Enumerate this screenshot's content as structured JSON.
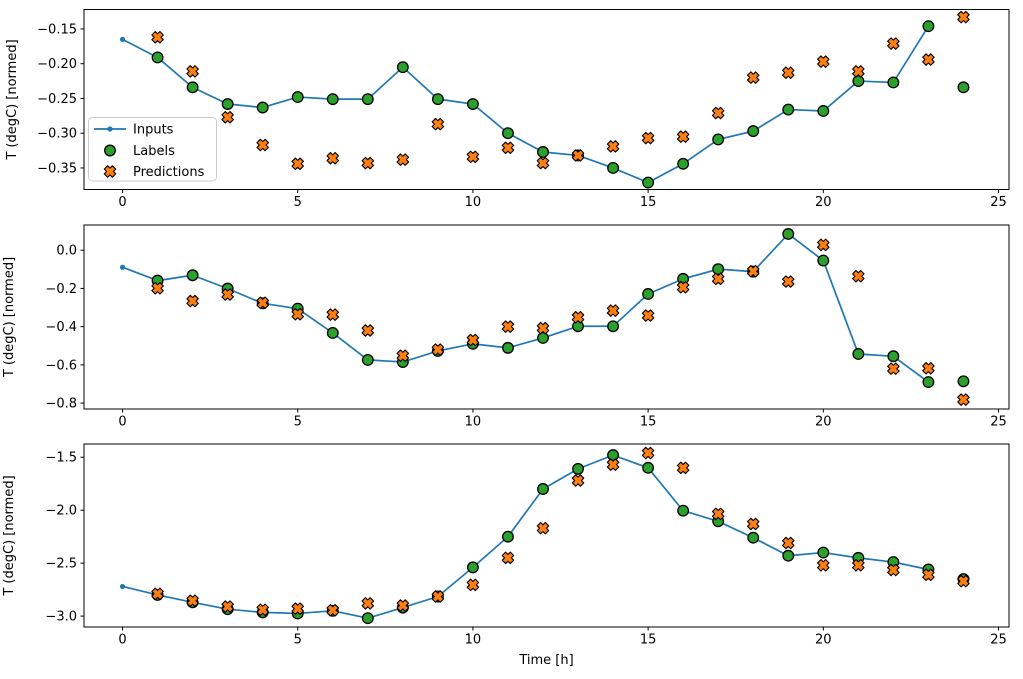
{
  "figure": {
    "background": "#ffffff"
  },
  "colors": {
    "inputs": "#1f77b4",
    "labels": "#2ca02c",
    "predictions": "#ff7f0e",
    "marker_edge": "#000000",
    "axis": "#000000",
    "legend_border": "#cccccc",
    "legend_bg": "#ffffff"
  },
  "legend": {
    "items": [
      {
        "label": "Inputs",
        "marker": "line-dot-icon"
      },
      {
        "label": "Labels",
        "marker": "circle-icon"
      },
      {
        "label": "Predictions",
        "marker": "x-cross-icon"
      }
    ]
  },
  "chart_data": [
    {
      "type": "line",
      "title": "",
      "ylabel": "T (degC) [normed]",
      "xlabel": "",
      "xlim": [
        -1.1,
        25.3
      ],
      "ylim": [
        -0.381,
        -0.122
      ],
      "xticks": [
        0,
        5,
        10,
        15,
        20,
        25
      ],
      "xtick_labels": [
        "0",
        "5",
        "10",
        "15",
        "20",
        "25"
      ],
      "yticks": [
        -0.15,
        -0.2,
        -0.25,
        -0.3,
        -0.35
      ],
      "ytick_labels": [
        "−0.15",
        "−0.20",
        "−0.25",
        "−0.30",
        "−0.35"
      ],
      "legend_position": "center left",
      "show_legend": true,
      "grid": false,
      "series": [
        {
          "name": "Inputs",
          "style": "line+dot",
          "x": [
            0,
            1,
            2,
            3,
            4,
            5,
            6,
            7,
            8,
            9,
            10,
            11,
            12,
            13,
            14,
            15,
            16,
            17,
            18,
            19,
            20,
            21,
            22,
            23
          ],
          "y": [
            -0.165,
            -0.191,
            -0.234,
            -0.258,
            -0.263,
            -0.248,
            -0.251,
            -0.251,
            -0.205,
            -0.251,
            -0.258,
            -0.3,
            -0.327,
            -0.332,
            -0.35,
            -0.371,
            -0.344,
            -0.309,
            -0.297,
            -0.266,
            -0.268,
            -0.225,
            -0.227,
            -0.146
          ]
        },
        {
          "name": "Labels",
          "style": "scatter-circle",
          "x": [
            1,
            2,
            3,
            4,
            5,
            6,
            7,
            8,
            9,
            10,
            11,
            12,
            13,
            14,
            15,
            16,
            17,
            18,
            19,
            20,
            21,
            22,
            23,
            24
          ],
          "y": [
            -0.191,
            -0.234,
            -0.258,
            -0.263,
            -0.248,
            -0.251,
            -0.251,
            -0.205,
            -0.251,
            -0.258,
            -0.3,
            -0.327,
            -0.332,
            -0.35,
            -0.371,
            -0.344,
            -0.309,
            -0.297,
            -0.266,
            -0.268,
            -0.225,
            -0.227,
            -0.146,
            -0.234
          ]
        },
        {
          "name": "Predictions",
          "style": "scatter-x",
          "x": [
            1,
            2,
            3,
            4,
            5,
            6,
            7,
            8,
            9,
            10,
            11,
            12,
            13,
            14,
            15,
            16,
            17,
            18,
            19,
            20,
            21,
            22,
            23,
            24
          ],
          "y": [
            -0.162,
            -0.211,
            -0.277,
            -0.317,
            -0.344,
            -0.336,
            -0.343,
            -0.338,
            -0.287,
            -0.334,
            -0.321,
            -0.343,
            -0.332,
            -0.319,
            -0.307,
            -0.305,
            -0.271,
            -0.22,
            -0.213,
            -0.197,
            -0.211,
            -0.171,
            -0.194,
            -0.133
          ]
        }
      ]
    },
    {
      "type": "line",
      "title": "",
      "ylabel": "T (degC) [normed]",
      "xlabel": "",
      "xlim": [
        -1.1,
        25.3
      ],
      "ylim": [
        -0.831,
        0.132
      ],
      "xticks": [
        0,
        5,
        10,
        15,
        20,
        25
      ],
      "xtick_labels": [
        "0",
        "5",
        "10",
        "15",
        "20",
        "25"
      ],
      "yticks": [
        0.0,
        -0.2,
        -0.4,
        -0.6,
        -0.8
      ],
      "ytick_labels": [
        "0.0",
        "−0.2",
        "−0.4",
        "−0.6",
        "−0.8"
      ],
      "show_legend": false,
      "grid": false,
      "series": [
        {
          "name": "Inputs",
          "style": "line+dot",
          "x": [
            0,
            1,
            2,
            3,
            4,
            5,
            6,
            7,
            8,
            9,
            10,
            11,
            12,
            13,
            14,
            15,
            16,
            17,
            18,
            19,
            20,
            21,
            22,
            23
          ],
          "y": [
            -0.089,
            -0.159,
            -0.131,
            -0.201,
            -0.278,
            -0.306,
            -0.433,
            -0.574,
            -0.585,
            -0.527,
            -0.49,
            -0.511,
            -0.459,
            -0.398,
            -0.398,
            -0.229,
            -0.15,
            -0.099,
            -0.112,
            0.085,
            -0.054,
            -0.543,
            -0.555,
            -0.69
          ]
        },
        {
          "name": "Labels",
          "style": "scatter-circle",
          "x": [
            1,
            2,
            3,
            4,
            5,
            6,
            7,
            8,
            9,
            10,
            11,
            12,
            13,
            14,
            15,
            16,
            17,
            18,
            19,
            20,
            21,
            22,
            23,
            24
          ],
          "y": [
            -0.159,
            -0.131,
            -0.201,
            -0.278,
            -0.306,
            -0.433,
            -0.574,
            -0.585,
            -0.527,
            -0.49,
            -0.511,
            -0.459,
            -0.398,
            -0.398,
            -0.229,
            -0.15,
            -0.099,
            -0.112,
            0.085,
            -0.054,
            -0.543,
            -0.555,
            -0.69,
            -0.686
          ]
        },
        {
          "name": "Predictions",
          "style": "scatter-x",
          "x": [
            1,
            2,
            3,
            4,
            5,
            6,
            7,
            8,
            9,
            10,
            11,
            12,
            13,
            14,
            15,
            16,
            17,
            18,
            19,
            20,
            21,
            22,
            23,
            24
          ],
          "y": [
            -0.199,
            -0.266,
            -0.232,
            -0.275,
            -0.335,
            -0.337,
            -0.42,
            -0.552,
            -0.52,
            -0.47,
            -0.4,
            -0.408,
            -0.351,
            -0.316,
            -0.342,
            -0.194,
            -0.15,
            -0.11,
            -0.164,
            0.028,
            -0.136,
            -0.62,
            -0.618,
            -0.782
          ]
        }
      ]
    },
    {
      "type": "line",
      "title": "",
      "ylabel": "T (degC) [normed]",
      "xlabel": "Time [h]",
      "xlim": [
        -1.1,
        25.3
      ],
      "ylim": [
        -3.103,
        -1.375
      ],
      "xticks": [
        0,
        5,
        10,
        15,
        20,
        25
      ],
      "xtick_labels": [
        "0",
        "5",
        "10",
        "15",
        "20",
        "25"
      ],
      "yticks": [
        -1.5,
        -2.0,
        -2.5,
        -3.0
      ],
      "ytick_labels": [
        "−1.5",
        "−2.0",
        "−2.5",
        "−3.0"
      ],
      "show_legend": false,
      "grid": false,
      "series": [
        {
          "name": "Inputs",
          "style": "line+dot",
          "x": [
            0,
            1,
            2,
            3,
            4,
            5,
            6,
            7,
            8,
            9,
            10,
            11,
            12,
            13,
            14,
            15,
            16,
            17,
            18,
            19,
            20,
            21,
            22,
            23
          ],
          "y": [
            -2.72,
            -2.8,
            -2.87,
            -2.935,
            -2.965,
            -2.975,
            -2.95,
            -3.02,
            -2.92,
            -2.815,
            -2.54,
            -2.25,
            -1.8,
            -1.61,
            -1.48,
            -1.6,
            -2.005,
            -2.105,
            -2.26,
            -2.43,
            -2.4,
            -2.45,
            -2.49,
            -2.56
          ]
        },
        {
          "name": "Labels",
          "style": "scatter-circle",
          "x": [
            1,
            2,
            3,
            4,
            5,
            6,
            7,
            8,
            9,
            10,
            11,
            12,
            13,
            14,
            15,
            16,
            17,
            18,
            19,
            20,
            21,
            22,
            23,
            24
          ],
          "y": [
            -2.8,
            -2.87,
            -2.935,
            -2.965,
            -2.975,
            -2.95,
            -3.02,
            -2.92,
            -2.815,
            -2.54,
            -2.25,
            -1.8,
            -1.61,
            -1.48,
            -1.6,
            -2.005,
            -2.105,
            -2.26,
            -2.43,
            -2.4,
            -2.45,
            -2.49,
            -2.56,
            -2.65
          ]
        },
        {
          "name": "Predictions",
          "style": "scatter-x",
          "x": [
            1,
            2,
            3,
            4,
            5,
            6,
            7,
            8,
            9,
            10,
            11,
            12,
            13,
            14,
            15,
            16,
            17,
            18,
            19,
            20,
            21,
            22,
            23,
            24
          ],
          "y": [
            -2.79,
            -2.855,
            -2.91,
            -2.94,
            -2.93,
            -2.945,
            -2.88,
            -2.9,
            -2.815,
            -2.705,
            -2.45,
            -2.17,
            -1.72,
            -1.57,
            -1.46,
            -1.6,
            -2.035,
            -2.13,
            -2.31,
            -2.52,
            -2.52,
            -2.565,
            -2.61,
            -2.67
          ]
        }
      ]
    }
  ]
}
